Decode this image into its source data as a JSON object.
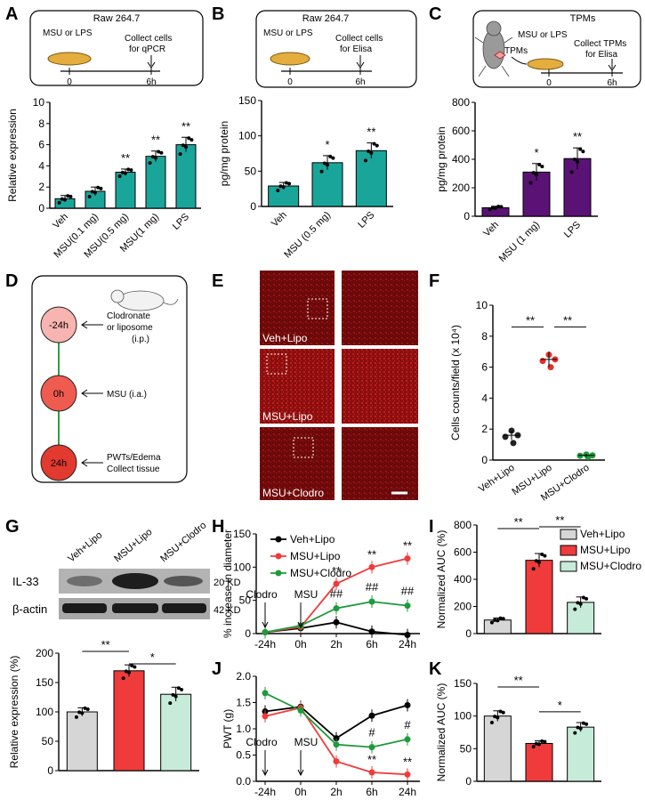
{
  "colors": {
    "teal": "#1aa59a",
    "purple": "#5a1275",
    "gray": "#d6d6d6",
    "red": "#ef3b3b",
    "green": "#c6ecd9",
    "lred": "#f8b4b0",
    "mred": "#f05b50",
    "dred": "#e23a2f",
    "line_green": "#1f9a3c"
  },
  "panels": {
    "A": "A",
    "B": "B",
    "C": "C",
    "D": "D",
    "E": "E",
    "F": "F",
    "G": "G",
    "H": "H",
    "I": "I",
    "J": "J",
    "K": "K"
  },
  "schemes": {
    "A": {
      "title": "Raw 264.7",
      "stim": "MSU or LPS",
      "collect1": "Collect cells",
      "collect2": "for qPCR",
      "t0": "0",
      "t1": "6h"
    },
    "B": {
      "title": "Raw 264.7",
      "stim": "MSU or LPS",
      "collect1": "Collect cells",
      "collect2": "for Elisa",
      "t0": "0",
      "t1": "6h"
    },
    "C": {
      "title": "TPMs",
      "tpm": "TPMs",
      "stim": "MSU or LPS",
      "collect1": "Collect TPMs",
      "collect2": "for Elisa",
      "t0": "0",
      "t1": "6h"
    }
  },
  "timeline": {
    "nodes": [
      "-24h",
      "0h",
      "24h"
    ],
    "labels": [
      [
        "Clodronate",
        "or liposome",
        "(i.p.)"
      ],
      [
        "MSU (i.a.)"
      ],
      [
        "PWTs/Edema",
        "Collect tissue"
      ]
    ]
  },
  "micro": {
    "labels": [
      "Veh+Lipo",
      "MSU+Lipo",
      "MSU+Clodro"
    ]
  },
  "western": {
    "lanes": [
      "Veh+Lipo",
      "MSU+Lipo",
      "MSU+Clodro"
    ],
    "rows": [
      "IL-33",
      "β-actin"
    ],
    "sizes": [
      "20 KD",
      "42 KD"
    ]
  },
  "chart_data": [
    {
      "id": "A",
      "type": "bar",
      "categories": [
        "Veh",
        "MSU(0.1 mg)",
        "MSU(0.5 mg)",
        "MSU(1 mg)",
        "LPS"
      ],
      "values": [
        0.9,
        1.6,
        3.4,
        4.9,
        6.0
      ],
      "errors": [
        0.3,
        0.4,
        0.3,
        0.5,
        0.7
      ],
      "sig": [
        "",
        "",
        "**",
        "**",
        "**"
      ],
      "ylabel": "Relative expression",
      "ylim": [
        0,
        10
      ],
      "yticks": [
        "0",
        "2",
        "4",
        "6",
        "8",
        "10"
      ]
    },
    {
      "id": "B",
      "type": "bar",
      "categories": [
        "Veh",
        "MSU (0.5 mg)",
        "LPS"
      ],
      "values": [
        29,
        62,
        79
      ],
      "errors": [
        5,
        10,
        11
      ],
      "sig": [
        "",
        "*",
        "**"
      ],
      "ylabel": "pg/mg protein",
      "ylim": [
        0,
        150
      ],
      "yticks": [
        "0",
        "50",
        "100",
        "150"
      ]
    },
    {
      "id": "C",
      "type": "bar",
      "categories": [
        "Veh",
        "MSU (1 mg)",
        "LPS"
      ],
      "values": [
        60,
        310,
        405
      ],
      "errors": [
        10,
        60,
        75
      ],
      "sig": [
        "",
        "*",
        "**"
      ],
      "ylabel": "pg/mg protein",
      "ylim": [
        0,
        800
      ],
      "yticks": [
        "0",
        "200",
        "400",
        "600",
        "800"
      ]
    },
    {
      "id": "F",
      "type": "scatter",
      "categories": [
        "Veh+Lipo",
        "MSU+Lipo",
        "MSU+Clodro"
      ],
      "values": [
        1.6,
        6.5,
        0.3
      ],
      "errors": [
        0.3,
        0.5,
        0.1
      ],
      "ylabel": "Cells counts/field (x 10⁴)",
      "ylim": [
        0,
        10
      ],
      "yticks": [
        "0",
        "2",
        "4",
        "6",
        "8",
        "10"
      ],
      "brackets": [
        "**",
        "**"
      ]
    },
    {
      "id": "G",
      "type": "bar",
      "categories": [
        "Veh+Lipo",
        "MSU+Lipo",
        "MSU+Clodro"
      ],
      "values": [
        100,
        170,
        130
      ],
      "errors": [
        7,
        10,
        12
      ],
      "ylabel": "Relative expression (%)",
      "ylim": [
        0,
        200
      ],
      "yticks": [
        "0",
        "50",
        "100",
        "150",
        "200"
      ],
      "brackets": [
        "**",
        "*"
      ]
    },
    {
      "id": "H",
      "type": "line",
      "x": [
        "-24h",
        "0h",
        "2h",
        "6h",
        "24h"
      ],
      "series": [
        {
          "name": "Veh+Lipo",
          "values": [
            2,
            8,
            17,
            3,
            -2
          ]
        },
        {
          "name": "MSU+Lipo",
          "values": [
            2,
            10,
            75,
            100,
            113
          ]
        },
        {
          "name": "MSU+Clodro",
          "values": [
            2,
            12,
            38,
            48,
            42
          ]
        }
      ],
      "ylabel": "% increase in diameter",
      "ylim": [
        0,
        150
      ],
      "yticks": [
        "0",
        "50",
        "100",
        "150"
      ],
      "annotations": [
        "Clodro",
        "MSU",
        "**",
        "**",
        "**",
        "##",
        "##",
        "##"
      ]
    },
    {
      "id": "I",
      "type": "bar",
      "categories": [
        "Veh+Lipo",
        "MSU+Lipo",
        "MSU+Clodro"
      ],
      "values": [
        100,
        540,
        230
      ],
      "errors": [
        15,
        50,
        40
      ],
      "ylabel": "Normalized AUC (%)",
      "ylim": [
        0,
        800
      ],
      "yticks": [
        "0",
        "200",
        "400",
        "600",
        "800"
      ],
      "brackets": [
        "**",
        "**"
      ],
      "legend": [
        "Veh+Lipo",
        "MSU+Lipo",
        "MSU+Clodro"
      ]
    },
    {
      "id": "J",
      "type": "line",
      "x": [
        "-24h",
        "0h",
        "2h",
        "6h",
        "24h"
      ],
      "series": [
        {
          "name": "Veh+Lipo",
          "values": [
            1.33,
            1.42,
            0.82,
            1.25,
            1.45
          ]
        },
        {
          "name": "MSU+Lipo",
          "values": [
            1.24,
            1.4,
            0.38,
            0.17,
            0.13
          ]
        },
        {
          "name": "MSU+Clodro",
          "values": [
            1.68,
            1.35,
            0.7,
            0.65,
            0.8
          ]
        }
      ],
      "ylabel": "PWT (g)",
      "ylim": [
        0,
        2.0
      ],
      "yticks": [
        "0.0",
        "0.5",
        "1.0",
        "1.5",
        "2.0"
      ],
      "annotations": [
        "Clodro",
        "MSU",
        "#",
        "#",
        "**",
        "**"
      ]
    },
    {
      "id": "K",
      "type": "bar",
      "categories": [
        "Veh+Lipo",
        "MSU+Lipo",
        "MSU+Clodro"
      ],
      "values": [
        100,
        58,
        83
      ],
      "errors": [
        8,
        4,
        7
      ],
      "ylabel": "Normalized AUC (%)",
      "ylim": [
        0,
        150
      ],
      "yticks": [
        "0",
        "50",
        "100",
        "150"
      ],
      "brackets": [
        "**",
        "*"
      ]
    }
  ]
}
